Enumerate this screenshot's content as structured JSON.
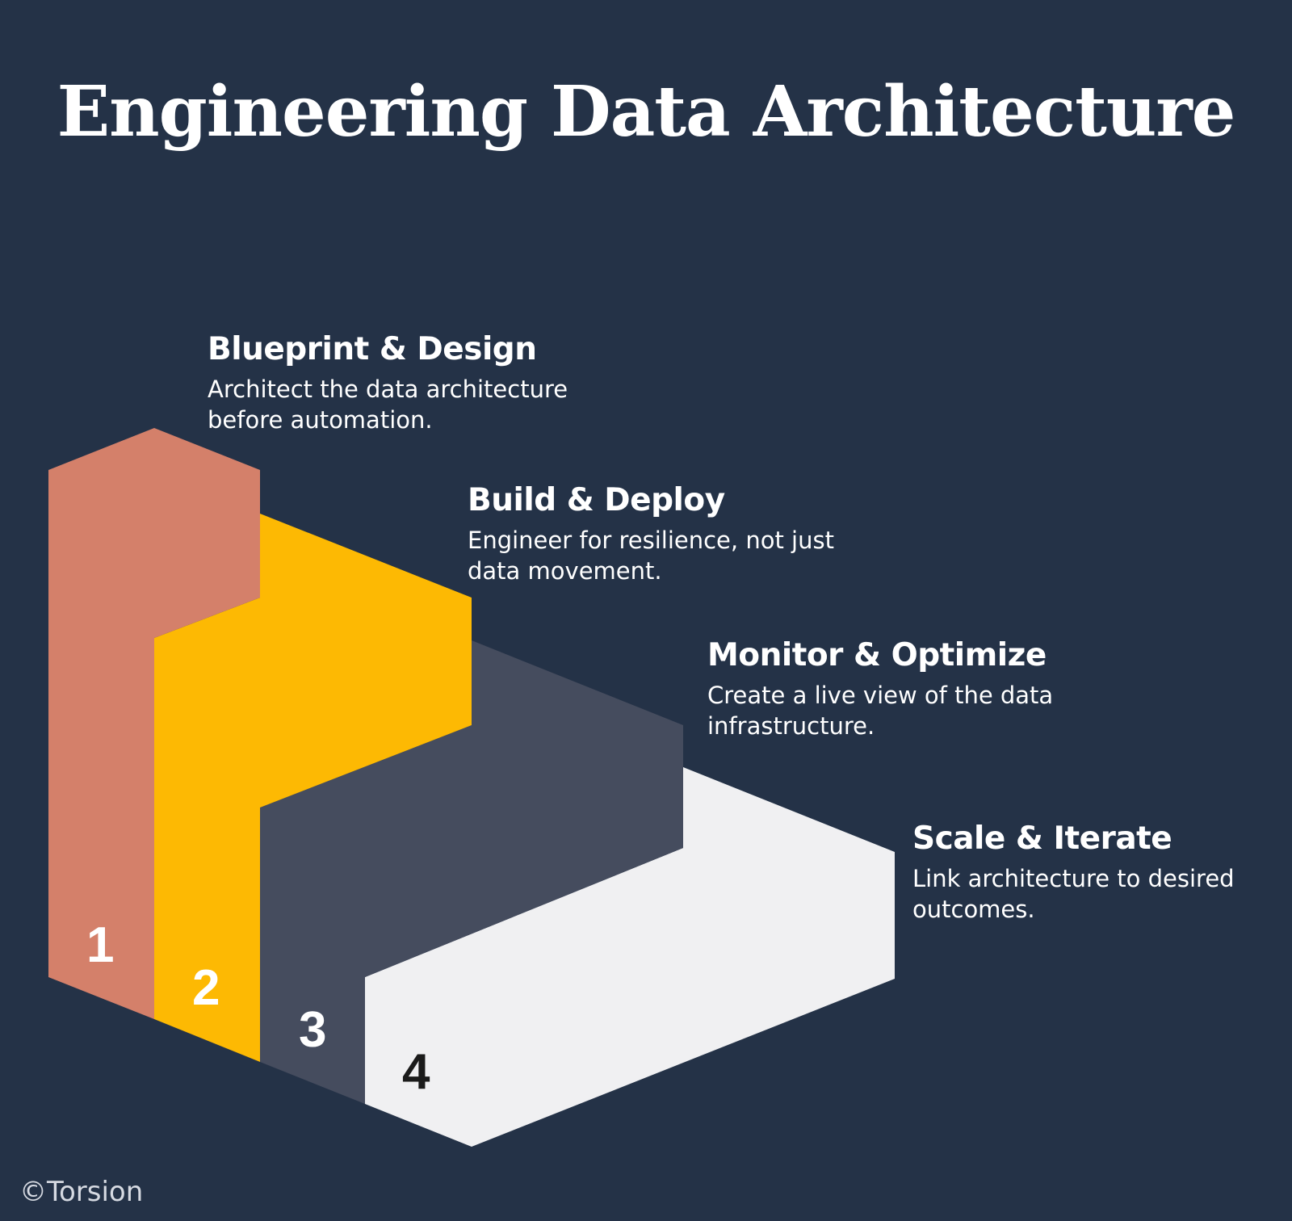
{
  "title": "Engineering Data Architecture",
  "steps": [
    {
      "number": "1",
      "heading": "Blueprint & Design",
      "description": "Architect the data architecture before automation.",
      "color": "#D4806A",
      "number_color": "#FFFFFF"
    },
    {
      "number": "2",
      "heading": "Build & Deploy",
      "description": "Engineer for resilience, not just data movement.",
      "color": "#FDB903",
      "number_color": "#FFFFFF"
    },
    {
      "number": "3",
      "heading": "Monitor & Optimize",
      "description": "Create a live view of the data infrastructure.",
      "color": "#454C5E",
      "number_color": "#FFFFFF"
    },
    {
      "number": "4",
      "heading": "Scale & Iterate",
      "description": "Link architecture to desired outcomes.",
      "color": "#F0F0F2",
      "number_color": "#1B1B1B"
    }
  ],
  "credit": "©Torsion",
  "colors": {
    "background": "#243247",
    "text": "#FFFFFF"
  }
}
